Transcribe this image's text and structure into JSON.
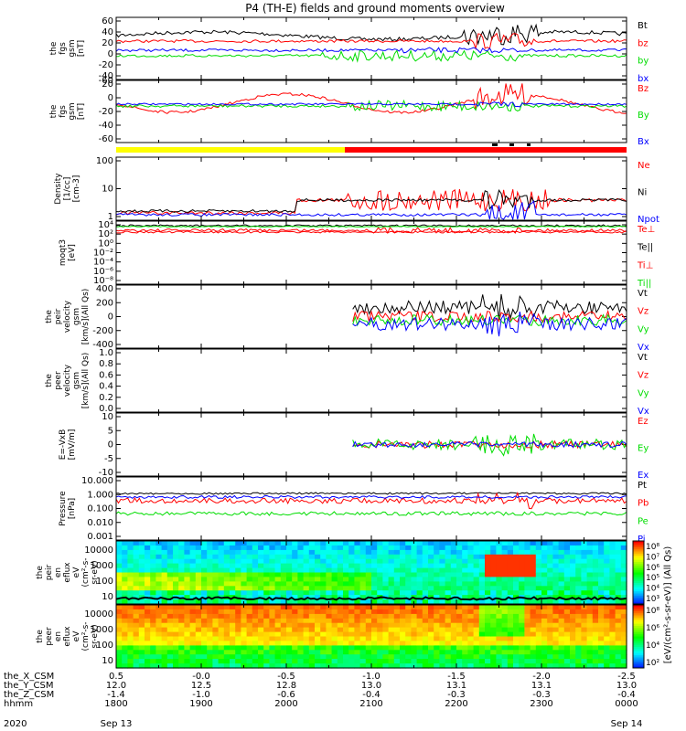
{
  "title": "P4 (TH-E) fields and ground moments overview",
  "colors": {
    "black": "#000000",
    "red": "#ff0000",
    "green": "#00dd00",
    "blue": "#0000ff",
    "yellow": "#ffff00"
  },
  "chart_data": [
    {
      "type": "line",
      "id": "p1",
      "ylabel_lines": [
        "the",
        "fgs",
        "gsm",
        "[nT]"
      ],
      "yticks": [
        "60",
        "40",
        "20",
        "0",
        "-20",
        "-40"
      ],
      "yticks_bottom": "-60",
      "series": [
        {
          "name": "Bt",
          "color": "#000000"
        },
        {
          "name": "bz",
          "color": "#ff0000"
        },
        {
          "name": "by",
          "color": "#00dd00"
        },
        {
          "name": "bx",
          "color": "#0000ff"
        }
      ]
    },
    {
      "type": "line",
      "id": "p2",
      "ylabel_lines": [
        "the",
        "fgs",
        "gsm",
        "[nT]"
      ],
      "yticks": [
        "20",
        "0",
        "-20",
        "-40",
        "-60"
      ],
      "series": [
        {
          "name": "Bz",
          "color": "#ff0000"
        },
        {
          "name": "By",
          "color": "#00dd00"
        },
        {
          "name": "Bx",
          "color": "#0000ff"
        }
      ]
    },
    {
      "type": "line",
      "id": "p3",
      "ylabel_lines": [
        "Density",
        "[1/cc]",
        "[cm-3]"
      ],
      "yticks": [
        "100",
        "10",
        "1"
      ],
      "series": [
        {
          "name": "Ne",
          "color": "#ff0000"
        },
        {
          "name": "Ni",
          "color": "#000000"
        },
        {
          "name": "Npot",
          "color": "#0000ff"
        }
      ]
    },
    {
      "type": "line",
      "id": "p4",
      "ylabel_lines": [
        "moqt3",
        "[eV]"
      ],
      "yticks": [
        "10⁴",
        "10²",
        "10⁰",
        "10⁻²",
        "10⁻⁴",
        "10⁻⁶",
        "10⁻⁸"
      ],
      "series": [
        {
          "name": "Te⊥",
          "color": "#ff0000"
        },
        {
          "name": "Te||",
          "color": "#000000"
        },
        {
          "name": "Ti⊥",
          "color": "#ff0000"
        },
        {
          "name": "Ti||",
          "color": "#00dd00"
        }
      ]
    },
    {
      "type": "line",
      "id": "p5",
      "ylabel_lines": [
        "the",
        "peir",
        "velocity",
        "gsm",
        "[km/s](All Qs)"
      ],
      "yticks": [
        "400",
        "200",
        "0",
        "-200",
        "-400"
      ],
      "series": [
        {
          "name": "Vt",
          "color": "#000000"
        },
        {
          "name": "Vz",
          "color": "#ff0000"
        },
        {
          "name": "Vy",
          "color": "#00dd00"
        },
        {
          "name": "Vx",
          "color": "#0000ff"
        }
      ]
    },
    {
      "type": "line",
      "id": "p6",
      "ylabel_lines": [
        "the",
        "peer",
        "velocity",
        "gsm",
        "[km/s](All Qs)"
      ],
      "yticks": [
        "1.0",
        "0.8",
        "0.6",
        "0.4",
        "0.2",
        "0.0"
      ],
      "series": [
        {
          "name": "Vt",
          "color": "#000000"
        },
        {
          "name": "Vz",
          "color": "#ff0000"
        },
        {
          "name": "Vy",
          "color": "#00dd00"
        },
        {
          "name": "Vx",
          "color": "#0000ff"
        }
      ]
    },
    {
      "type": "line",
      "id": "p7",
      "ylabel_lines": [
        "E=-VxB",
        "[mV/m]"
      ],
      "yticks": [
        "10",
        "5",
        "0",
        "-5",
        "-10"
      ],
      "series": [
        {
          "name": "Ez",
          "color": "#ff0000"
        },
        {
          "name": "Ey",
          "color": "#00dd00"
        },
        {
          "name": "Ex",
          "color": "#0000ff"
        }
      ]
    },
    {
      "type": "line",
      "id": "p8",
      "ylabel_lines": [
        "Pressure",
        "[nPa]"
      ],
      "yticks": [
        "10.000",
        "1.000",
        "0.100",
        "0.010",
        "0.001"
      ],
      "series": [
        {
          "name": "Pt",
          "color": "#000000"
        },
        {
          "name": "Pb",
          "color": "#ff0000"
        },
        {
          "name": "Pe",
          "color": "#00dd00"
        },
        {
          "name": "Pi",
          "color": "#0000ff"
        }
      ]
    },
    {
      "type": "heatmap",
      "id": "p9",
      "ylabel_lines": [
        "the",
        "peir",
        "en",
        "eflux",
        "eV",
        "(cm²-s-",
        "sr-eV)"
      ],
      "yticks": [
        "10000",
        "1000",
        "100",
        "10"
      ]
    },
    {
      "type": "heatmap",
      "id": "p10",
      "ylabel_lines": [
        "the",
        "peer",
        "en",
        "eflux",
        "eV",
        "(cm²-s-",
        "sr-eV)"
      ],
      "yticks": [
        "10000",
        "1000",
        "100",
        "10"
      ]
    }
  ],
  "colorbar": {
    "ticks": [
      "10⁸",
      "10⁷",
      "10⁶",
      "10⁵",
      "10⁴",
      "10³"
    ],
    "ticks2": [
      "10⁸",
      "10⁶",
      "10⁴",
      "10²"
    ],
    "label": "[eV/(cm²-s-sr-eV)] (All Qs)"
  },
  "xaxis": {
    "rows": [
      {
        "label": "the_X_CSM",
        "values": [
          "0.5",
          "-0.0",
          "-0.5",
          "-1.0",
          "-1.5",
          "-2.0",
          "-2.5"
        ]
      },
      {
        "label": "the_Y_CSM",
        "values": [
          "12.0",
          "12.5",
          "12.8",
          "13.0",
          "13.1",
          "13.1",
          "13.0"
        ]
      },
      {
        "label": "the_Z_CSM",
        "values": [
          "-1.4",
          "-1.0",
          "-0.6",
          "-0.4",
          "-0.3",
          "-0.3",
          "-0.4"
        ]
      },
      {
        "label": "hhmm",
        "values": [
          "1800",
          "1900",
          "2000",
          "2100",
          "2200",
          "2300",
          "0000"
        ]
      }
    ],
    "year": "2020",
    "start_date": "Sep 13",
    "end_date": "Sep 14"
  }
}
